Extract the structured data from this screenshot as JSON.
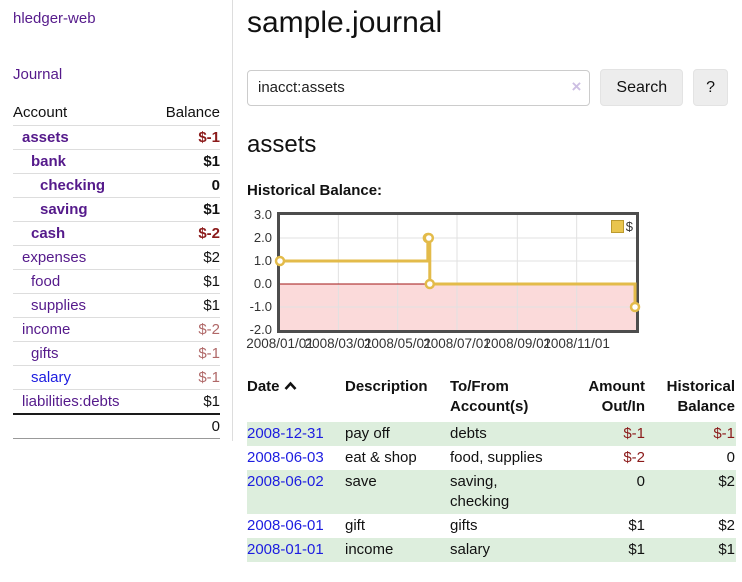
{
  "colors": {
    "link_purple": "#551a8b",
    "link_blue": "#1d1de0",
    "negative_strong": "#8b1a1a",
    "negative_soft": "#b06868",
    "row_shade_green": "#ddeedd",
    "chart_line_gold": "#e3bb4a",
    "chart_negative_fill": "#fbdada",
    "chart_zero_line": "#a11414"
  },
  "sidebar": {
    "app_title": "hledger-web",
    "journal_link": "Journal",
    "accounts_table": {
      "header_account": "Account",
      "header_balance": "Balance",
      "rows": [
        {
          "label": "assets",
          "indent": 1,
          "bold": true,
          "link_color": "purple",
          "balance": "$-1",
          "balance_color": "neg_strong"
        },
        {
          "label": "bank",
          "indent": 2,
          "bold": true,
          "link_color": "purple",
          "balance": "$1",
          "balance_color": "default"
        },
        {
          "label": "checking",
          "indent": 3,
          "bold": true,
          "link_color": "purple",
          "balance": "0",
          "balance_color": "default"
        },
        {
          "label": "saving",
          "indent": 3,
          "bold": true,
          "link_color": "purple",
          "balance": "$1",
          "balance_color": "default"
        },
        {
          "label": "cash",
          "indent": 2,
          "bold": true,
          "link_color": "purple",
          "balance": "$-2",
          "balance_color": "neg_strong"
        },
        {
          "label": "expenses",
          "indent": 1,
          "bold": false,
          "link_color": "purple",
          "balance": "$2",
          "balance_color": "default"
        },
        {
          "label": "food",
          "indent": 2,
          "bold": false,
          "link_color": "purple",
          "balance": "$1",
          "balance_color": "default"
        },
        {
          "label": "supplies",
          "indent": 2,
          "bold": false,
          "link_color": "purple",
          "balance": "$1",
          "balance_color": "default"
        },
        {
          "label": "income",
          "indent": 1,
          "bold": false,
          "link_color": "purple",
          "balance": "$-2",
          "balance_color": "neg_soft"
        },
        {
          "label": "gifts",
          "indent": 2,
          "bold": false,
          "link_color": "purple",
          "balance": "$-1",
          "balance_color": "neg_soft"
        },
        {
          "label": "salary",
          "indent": 2,
          "bold": false,
          "link_color": "blue",
          "balance": "$-1",
          "balance_color": "neg_soft"
        },
        {
          "label": "liabilities:debts",
          "indent": 1,
          "bold": false,
          "link_color": "purple",
          "balance": "$1",
          "balance_color": "default"
        }
      ],
      "total": "0"
    }
  },
  "main": {
    "title": "sample.journal",
    "search": {
      "value": "inacct:assets",
      "clear_icon": "×",
      "search_button": "Search",
      "help_button": "?"
    },
    "account_heading": "assets",
    "chart_title": "Historical Balance:"
  },
  "register": {
    "headers": {
      "date": "Date",
      "description": "Description",
      "accounts": "To/From Account(s)",
      "amount": "Amount Out/In",
      "balance": "Historical Balance"
    },
    "rows": [
      {
        "date": "2008-12-31",
        "description": "pay off",
        "accounts": "debts",
        "amount": "$-1",
        "balance": "$-1",
        "amount_negative": true,
        "balance_negative": true,
        "shaded": true
      },
      {
        "date": "2008-06-03",
        "description": "eat & shop",
        "accounts": "food, supplies",
        "amount": "$-2",
        "balance": "0",
        "amount_negative": true,
        "balance_negative": false,
        "shaded": false
      },
      {
        "date": "2008-06-02",
        "description": "save",
        "accounts": "saving, checking",
        "amount": "0",
        "balance": "$2",
        "amount_negative": false,
        "balance_negative": false,
        "shaded": true
      },
      {
        "date": "2008-06-01",
        "description": "gift",
        "accounts": "gifts",
        "amount": "$1",
        "balance": "$2",
        "amount_negative": false,
        "balance_negative": false,
        "shaded": false
      },
      {
        "date": "2008-01-01",
        "description": "income",
        "accounts": "salary",
        "amount": "$1",
        "balance": "$1",
        "amount_negative": false,
        "balance_negative": false,
        "shaded": true
      }
    ]
  },
  "chart_data": {
    "type": "line",
    "step": true,
    "title": "Historical Balance",
    "x_range": [
      "2008-01-01",
      "2009-01-01"
    ],
    "ylim": [
      -2,
      3
    ],
    "yticks": [
      "3.0",
      "2.0",
      "1.0",
      "0.0",
      "-1.0",
      "-2.0"
    ],
    "xticks": [
      "2008/01/01",
      "2008/03/01",
      "2008/05/01",
      "2008/07/01",
      "2008/09/01",
      "2008/11/01"
    ],
    "legend": {
      "label": "$",
      "position": "top-right"
    },
    "grid": true,
    "negative_region_shaded": true,
    "series": [
      {
        "name": "$",
        "points": [
          [
            "2008-01-01",
            1
          ],
          [
            "2008-06-01",
            2
          ],
          [
            "2008-06-02",
            2
          ],
          [
            "2008-06-03",
            0
          ],
          [
            "2008-12-31",
            -1
          ]
        ]
      }
    ]
  }
}
